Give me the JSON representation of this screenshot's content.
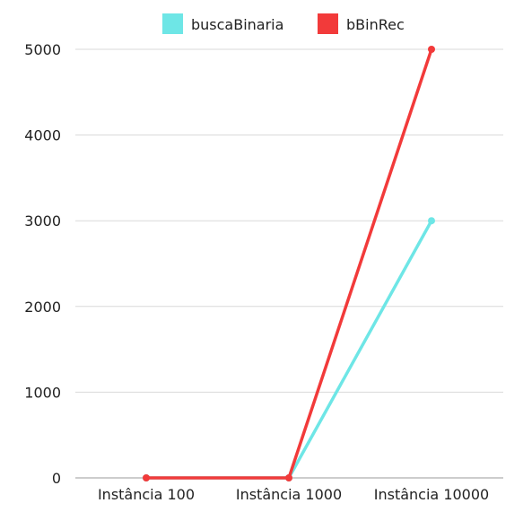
{
  "chart_data": {
    "type": "line",
    "categories": [
      "Instância 100",
      "Instância 1000",
      "Instância 10000"
    ],
    "series": [
      {
        "name": "buscaBinaria",
        "color": "#6ee6e6",
        "values": [
          0,
          0,
          3000
        ]
      },
      {
        "name": "bBinRec",
        "color": "#f23a3a",
        "values": [
          0,
          0,
          5000
        ]
      }
    ],
    "yticks": [
      "0",
      "1000",
      "2000",
      "3000",
      "4000",
      "5000"
    ],
    "ylim": [
      0,
      5000
    ],
    "grid": true,
    "legend_position": "top-center"
  }
}
